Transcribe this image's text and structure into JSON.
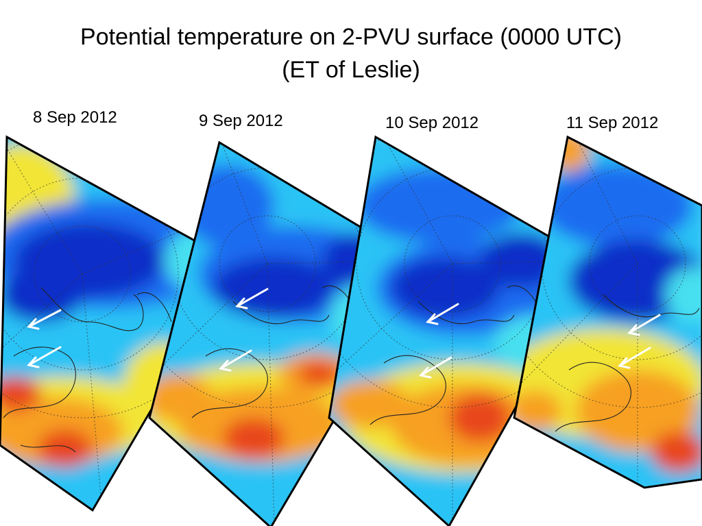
{
  "title": {
    "line1": "Potential temperature on 2-PVU surface (0000 UTC)",
    "line2": "(ET of Leslie)"
  },
  "panels": [
    {
      "date": "8 Sep 2012"
    },
    {
      "date": "9 Sep 2012"
    },
    {
      "date": "10 Sep 2012"
    },
    {
      "date": "11 Sep 2012"
    }
  ],
  "colors": {
    "cold_deep": "#0a2fc8",
    "cold": "#1f6cf0",
    "cool": "#29c3f5",
    "cyan": "#46e0f0",
    "mild": "#f2e534",
    "warm": "#f7a021",
    "hot": "#e8471a",
    "frame": "#000000",
    "arrow": "#ffffff"
  }
}
